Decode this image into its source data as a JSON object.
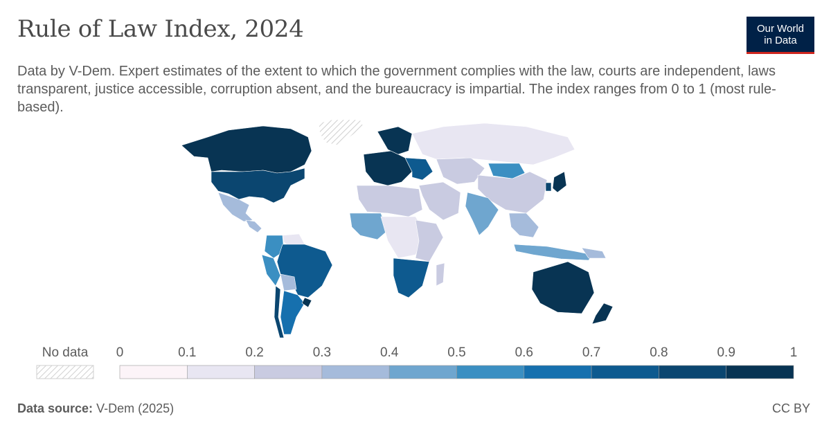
{
  "title": "Rule of Law Index, 2024",
  "subtitle": "Data by V-Dem. Expert estimates of the extent to which the government complies with the law, courts are independent, laws transparent, justice accessible, corruption absent, and the bureaucracy is impartial. The index ranges from 0 to 1 (most rule-based).",
  "logo": {
    "line1": "Our World",
    "line2": "in Data"
  },
  "legend": {
    "no_data_label": "No data",
    "ticks": [
      "0",
      "0.1",
      "0.2",
      "0.3",
      "0.4",
      "0.5",
      "0.6",
      "0.7",
      "0.8",
      "0.9",
      "1"
    ],
    "bins": [
      {
        "range": "0–0.1",
        "color": "#fcf4f8"
      },
      {
        "range": "0.1–0.2",
        "color": "#e8e6f2"
      },
      {
        "range": "0.2–0.3",
        "color": "#c9cbe1"
      },
      {
        "range": "0.3–0.4",
        "color": "#a5bbdb"
      },
      {
        "range": "0.4–0.5",
        "color": "#6fa6cf"
      },
      {
        "range": "0.5–0.6",
        "color": "#3b8fc2"
      },
      {
        "range": "0.6–0.7",
        "color": "#1670ae"
      },
      {
        "range": "0.7–0.8",
        "color": "#0e5a8f"
      },
      {
        "range": "0.8–0.9",
        "color": "#0b4670"
      },
      {
        "range": "0.9–1",
        "color": "#083453"
      }
    ],
    "no_data_pattern": "hatched"
  },
  "regions": [
    {
      "name": "Canada",
      "bin": 9
    },
    {
      "name": "United States",
      "bin": 8
    },
    {
      "name": "Greenland",
      "bin": -1
    },
    {
      "name": "Mexico",
      "bin": 3
    },
    {
      "name": "Central America",
      "bin": 3
    },
    {
      "name": "Venezuela",
      "bin": 1
    },
    {
      "name": "Colombia",
      "bin": 5
    },
    {
      "name": "Peru",
      "bin": 5
    },
    {
      "name": "Brazil",
      "bin": 7
    },
    {
      "name": "Bolivia",
      "bin": 3
    },
    {
      "name": "Chile",
      "bin": 8
    },
    {
      "name": "Argentina",
      "bin": 6
    },
    {
      "name": "Uruguay",
      "bin": 9
    },
    {
      "name": "Western Europe",
      "bin": 9
    },
    {
      "name": "Scandinavia",
      "bin": 9
    },
    {
      "name": "Eastern Europe",
      "bin": 7
    },
    {
      "name": "Russia",
      "bin": 1
    },
    {
      "name": "Central Asia",
      "bin": 2
    },
    {
      "name": "Mongolia",
      "bin": 5
    },
    {
      "name": "China",
      "bin": 2
    },
    {
      "name": "Japan",
      "bin": 9
    },
    {
      "name": "South Korea",
      "bin": 8
    },
    {
      "name": "India",
      "bin": 4
    },
    {
      "name": "Middle East",
      "bin": 2
    },
    {
      "name": "North Africa",
      "bin": 2
    },
    {
      "name": "West Africa",
      "bin": 4
    },
    {
      "name": "Central Africa",
      "bin": 1
    },
    {
      "name": "East Africa",
      "bin": 2
    },
    {
      "name": "Southern Africa",
      "bin": 7
    },
    {
      "name": "Madagascar",
      "bin": 2
    },
    {
      "name": "Southeast Asia",
      "bin": 3
    },
    {
      "name": "Indonesia",
      "bin": 4
    },
    {
      "name": "Australia",
      "bin": 9
    },
    {
      "name": "New Zealand",
      "bin": 9
    },
    {
      "name": "Papua New Guinea",
      "bin": 3
    }
  ],
  "footer": {
    "source_label": "Data source:",
    "source_value": "V-Dem (2025)",
    "license": "CC BY"
  }
}
